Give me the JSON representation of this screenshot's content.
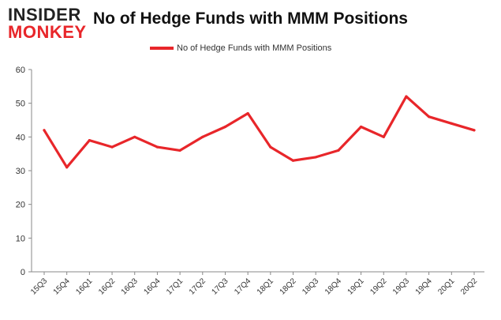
{
  "logo": {
    "top": "INSIDER",
    "bottom": "MONKEY"
  },
  "chart_data": {
    "type": "line",
    "title": "No of Hedge Funds with MMM Positions",
    "xlabel": "",
    "ylabel": "",
    "categories": [
      "15Q3",
      "15Q4",
      "16Q1",
      "16Q2",
      "16Q3",
      "16Q4",
      "17Q1",
      "17Q2",
      "17Q3",
      "17Q4",
      "18Q1",
      "18Q2",
      "18Q3",
      "18Q4",
      "19Q1",
      "19Q2",
      "19Q3",
      "19Q4",
      "20Q1",
      "20Q2"
    ],
    "series": [
      {
        "name": "No of Hedge Funds with MMM Positions",
        "values": [
          42,
          31,
          39,
          37,
          40,
          37,
          36,
          40,
          43,
          47,
          37,
          33,
          34,
          36,
          43,
          40,
          52,
          46,
          44,
          42
        ]
      }
    ],
    "ylim": [
      0,
      60
    ],
    "yticks": [
      0,
      10,
      20,
      30,
      40,
      50,
      60
    ],
    "grid": false,
    "legend": "top-center",
    "color": "#e8262a",
    "axis_color": "#888888"
  }
}
